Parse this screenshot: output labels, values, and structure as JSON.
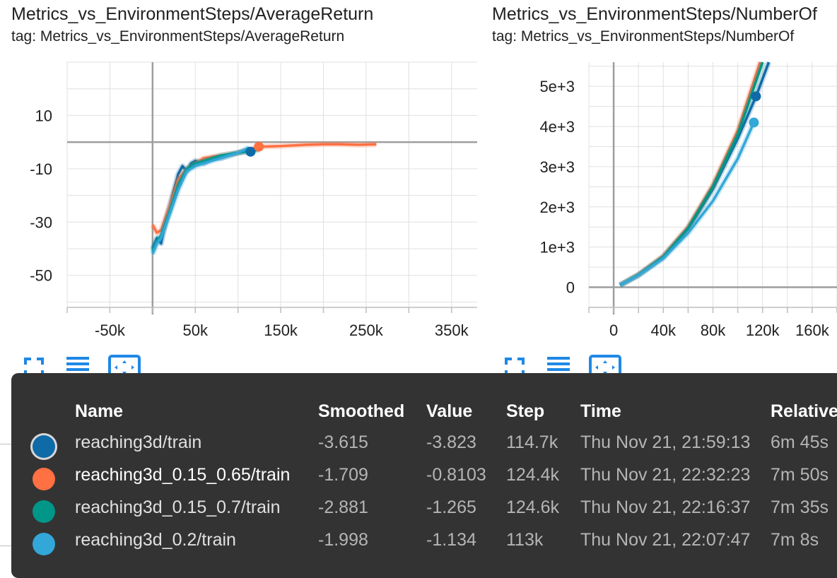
{
  "cards": [
    {
      "title": "Metrics_vs_EnvironmentSteps/AverageReturn",
      "tag": "tag: Metrics_vs_EnvironmentSteps/AverageReturn"
    },
    {
      "title": "Metrics_vs_EnvironmentSteps/NumberOf",
      "tag": "tag: Metrics_vs_EnvironmentSteps/NumberOf"
    }
  ],
  "colors": {
    "run1": "#0f6aa8",
    "run2": "#ff7043",
    "run3": "#009688",
    "run4": "#33a7d8",
    "tooltip_bg": "#333333",
    "toolbar_icon": "#1e88e5"
  },
  "toolbar_icons": [
    "fullscreen-icon",
    "data-table-icon",
    "fit-domain-icon"
  ],
  "chart_data": [
    {
      "type": "line",
      "title": "Metrics_vs_EnvironmentSteps/AverageReturn",
      "xlabel": "",
      "ylabel": "",
      "xlim": [
        -100000,
        380000
      ],
      "ylim": [
        -62,
        30
      ],
      "xticks": [
        -50000,
        50000,
        150000,
        250000,
        350000
      ],
      "xtick_labels": [
        "-50k",
        "50k",
        "150k",
        "250k",
        "350k"
      ],
      "yticks": [
        10,
        -10,
        -30,
        -50
      ],
      "ytick_labels": [
        "10",
        "-10",
        "-30",
        "-50"
      ],
      "grid": true,
      "series": [
        {
          "name": "reaching3d/train",
          "color": "#0f6aa8",
          "x": [
            0,
            5000,
            10000,
            15000,
            20000,
            25000,
            30000,
            35000,
            40000,
            45000,
            50000,
            60000,
            70000,
            80000,
            90000,
            100000,
            110000,
            114700
          ],
          "y": [
            -40,
            -36,
            -38,
            -30,
            -24,
            -18,
            -12,
            -9,
            -11,
            -8,
            -7,
            -8,
            -6,
            -6,
            -5,
            -4,
            -3.6,
            -3.6
          ]
        },
        {
          "name": "reaching3d_0.15_0.65/train",
          "color": "#ff7043",
          "x": [
            0,
            5000,
            10000,
            20000,
            30000,
            40000,
            50000,
            60000,
            80000,
            100000,
            124400,
            150000,
            180000,
            200000,
            220000,
            240000,
            262000
          ],
          "y": [
            -31,
            -34,
            -33,
            -24,
            -14,
            -10,
            -8,
            -6,
            -5,
            -4,
            -1.7,
            -1.5,
            -1,
            -0.8,
            -0.8,
            -1,
            -0.8
          ]
        },
        {
          "name": "reaching3d_0.15_0.7/train",
          "color": "#009688",
          "x": [
            0,
            5000,
            10000,
            20000,
            30000,
            40000,
            50000,
            60000,
            80000,
            100000,
            124600
          ],
          "y": [
            -41,
            -37,
            -35,
            -26,
            -16,
            -10,
            -8,
            -7,
            -5,
            -4,
            -2.9
          ]
        },
        {
          "name": "reaching3d_0.2/train",
          "color": "#33a7d8",
          "x": [
            0,
            5000,
            10000,
            20000,
            30000,
            40000,
            50000,
            60000,
            80000,
            100000,
            113000
          ],
          "y": [
            -42,
            -38,
            -36,
            -27,
            -18,
            -11,
            -9,
            -8,
            -6,
            -4,
            -2
          ]
        }
      ]
    },
    {
      "type": "line",
      "title": "Metrics_vs_EnvironmentSteps/NumberOf",
      "xlabel": "",
      "ylabel": "",
      "xlim": [
        -20000,
        180000
      ],
      "ylim": [
        -500,
        5600
      ],
      "xticks": [
        0,
        40000,
        80000,
        120000,
        160000
      ],
      "xtick_labels": [
        "0",
        "40k",
        "80k",
        "120k",
        "160k"
      ],
      "yticks": [
        0,
        1000,
        2000,
        3000,
        4000,
        5000
      ],
      "ytick_labels": [
        "0",
        "1e+3",
        "2e+3",
        "3e+3",
        "4e+3",
        "5e+3"
      ],
      "grid": true,
      "series": [
        {
          "name": "reaching3d/train",
          "color": "#0f6aa8",
          "x": [
            5000,
            20000,
            40000,
            60000,
            80000,
            100000,
            114700,
            125000
          ],
          "y": [
            50,
            300,
            750,
            1450,
            2450,
            3700,
            4750,
            5600
          ]
        },
        {
          "name": "reaching3d_0.15_0.65/train",
          "color": "#ff7043",
          "x": [
            5000,
            20000,
            40000,
            60000,
            80000,
            100000,
            118000
          ],
          "y": [
            50,
            320,
            780,
            1500,
            2550,
            3900,
            5600
          ]
        },
        {
          "name": "reaching3d_0.15_0.7/train",
          "color": "#009688",
          "x": [
            5000,
            20000,
            40000,
            60000,
            80000,
            100000,
            120000
          ],
          "y": [
            50,
            310,
            760,
            1470,
            2500,
            3800,
            5600
          ]
        },
        {
          "name": "reaching3d_0.2/train",
          "color": "#33a7d8",
          "x": [
            5000,
            20000,
            40000,
            60000,
            80000,
            100000,
            113000
          ],
          "y": [
            50,
            300,
            720,
            1350,
            2150,
            3200,
            4100
          ]
        }
      ]
    }
  ],
  "tooltip": {
    "headers": {
      "name": "Name",
      "smoothed": "Smoothed",
      "value": "Value",
      "step": "Step",
      "time": "Time",
      "relative": "Relative"
    },
    "rows": [
      {
        "name": "reaching3d/train",
        "smoothed": "-3.615",
        "value": "-3.823",
        "step": "114.7k",
        "time": "Thu Nov 21, 21:59:13",
        "relative": "6m 45s",
        "color": "#0f6aa8"
      },
      {
        "name": "reaching3d_0.15_0.65/train",
        "smoothed": "-1.709",
        "value": "-0.8103",
        "step": "124.4k",
        "time": "Thu Nov 21, 22:32:23",
        "relative": "7m 50s",
        "color": "#ff7043"
      },
      {
        "name": "reaching3d_0.15_0.7/train",
        "smoothed": "-2.881",
        "value": "-1.265",
        "step": "124.6k",
        "time": "Thu Nov 21, 22:16:37",
        "relative": "7m 35s",
        "color": "#009688"
      },
      {
        "name": "reaching3d_0.2/train",
        "smoothed": "-1.998",
        "value": "-1.134",
        "step": "113k",
        "time": "Thu Nov 21, 22:07:47",
        "relative": "7m 8s",
        "color": "#33a7d8"
      }
    ]
  }
}
